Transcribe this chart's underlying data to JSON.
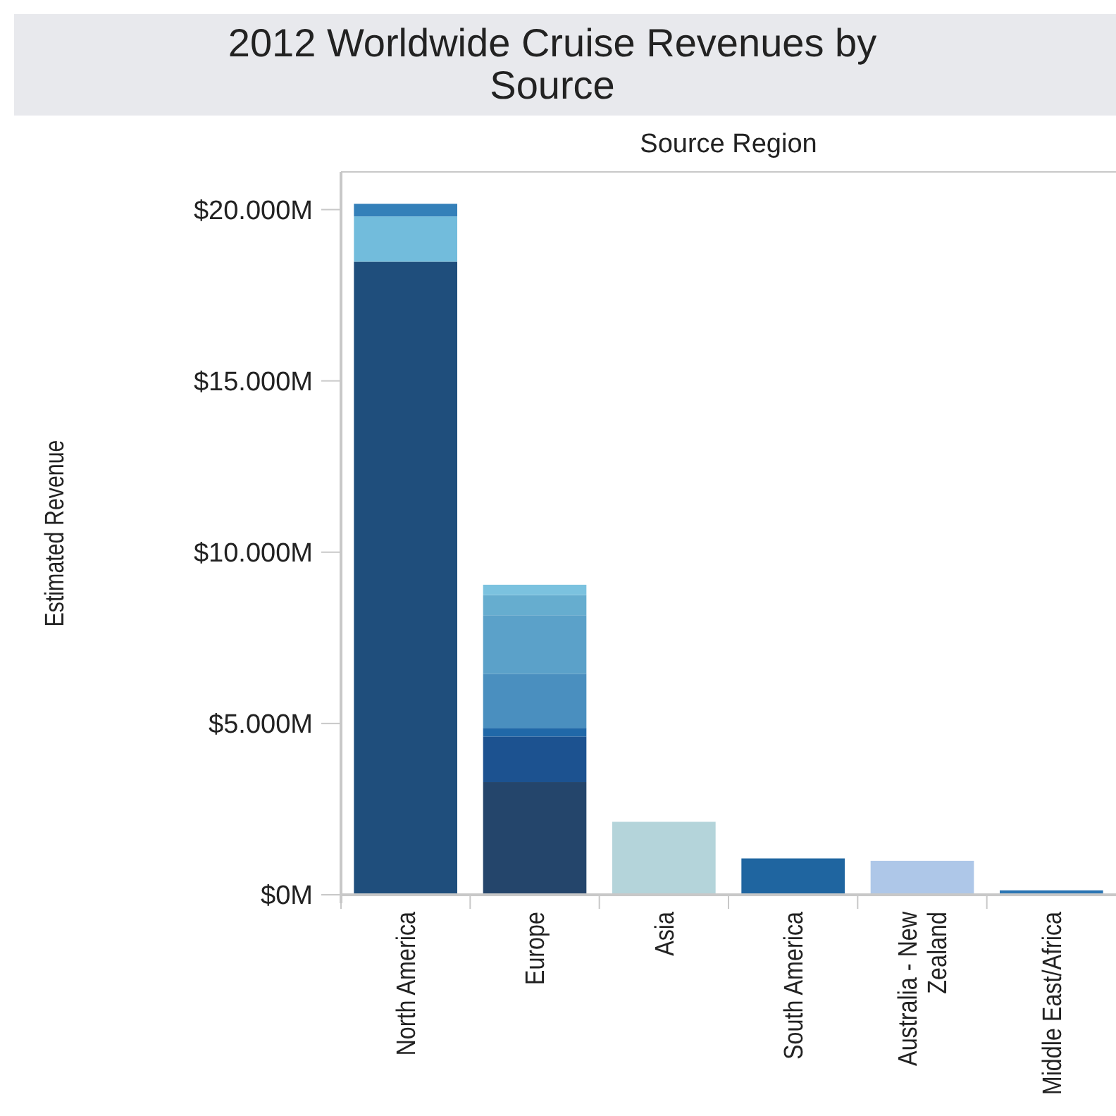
{
  "chart_data": {
    "type": "bar",
    "title": "2012 Worldwide Cruise Revenues by Source",
    "xlabel": "Source Region",
    "ylabel": "Estimated Revenue",
    "categories": [
      "North America",
      "Europe",
      "Asia",
      "South America",
      "Australia - New Zealand",
      "Middle East/Africa"
    ],
    "stacked": true,
    "series": [
      {
        "values": [
          18480,
          3290,
          2130,
          1060,
          990,
          130
        ],
        "colors": [
          "#1f4e7c",
          "#24456b",
          "#b4d4da",
          "#1f65a0",
          "#aec7e8",
          "#2a75b3"
        ]
      },
      {
        "values": [
          1320,
          1330,
          null,
          null,
          null,
          null
        ],
        "colors": [
          "#72bcdc",
          "#1c5290",
          null,
          null,
          null,
          null
        ]
      },
      {
        "values": [
          370,
          250,
          null,
          null,
          null,
          null
        ],
        "colors": [
          "#3480b9",
          "#2068a8",
          null,
          null,
          null,
          null
        ]
      },
      {
        "values": [
          null,
          1580,
          null,
          null,
          null,
          null
        ],
        "colors": [
          null,
          "#4a8fbf",
          null,
          null,
          null,
          null
        ]
      },
      {
        "values": [
          null,
          1710,
          null,
          null,
          null,
          null
        ],
        "colors": [
          null,
          "#5ba1c9",
          null,
          null,
          null,
          null
        ]
      },
      {
        "values": [
          null,
          590,
          null,
          null,
          null,
          null
        ],
        "colors": [
          null,
          "#66adcf",
          null,
          null,
          null,
          null
        ]
      },
      {
        "values": [
          null,
          300,
          null,
          null,
          null,
          null
        ],
        "colors": [
          null,
          "#7bc2df",
          null,
          null,
          null,
          null
        ]
      }
    ],
    "ylim": [
      0,
      21100
    ],
    "yticks": [
      {
        "value": 0,
        "label": "$0M"
      },
      {
        "value": 5000,
        "label": "$5.000M"
      },
      {
        "value": 10000,
        "label": "$10.000M"
      },
      {
        "value": 15000,
        "label": "$15.000M"
      },
      {
        "value": 20000,
        "label": "$20.000M"
      }
    ],
    "grid": false
  }
}
